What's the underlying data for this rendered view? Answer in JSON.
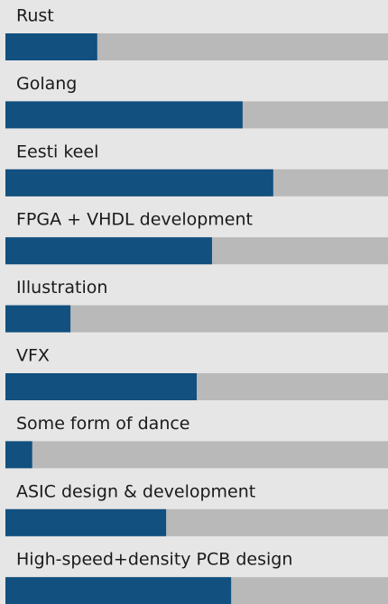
{
  "chart_data": {
    "type": "bar",
    "orientation": "horizontal",
    "categories": [
      "Rust",
      "Golang",
      "Eesti keel",
      "FPGA + VHDL development",
      "Illustration",
      "VFX",
      "Some form of dance",
      "ASIC design & development",
      "High-speed+density PCB design"
    ],
    "values": [
      24,
      62,
      70,
      54,
      17,
      50,
      7,
      42,
      59
    ],
    "xlim": [
      0,
      100
    ],
    "color": "#11507f",
    "track_color": "#b9b9b9"
  }
}
